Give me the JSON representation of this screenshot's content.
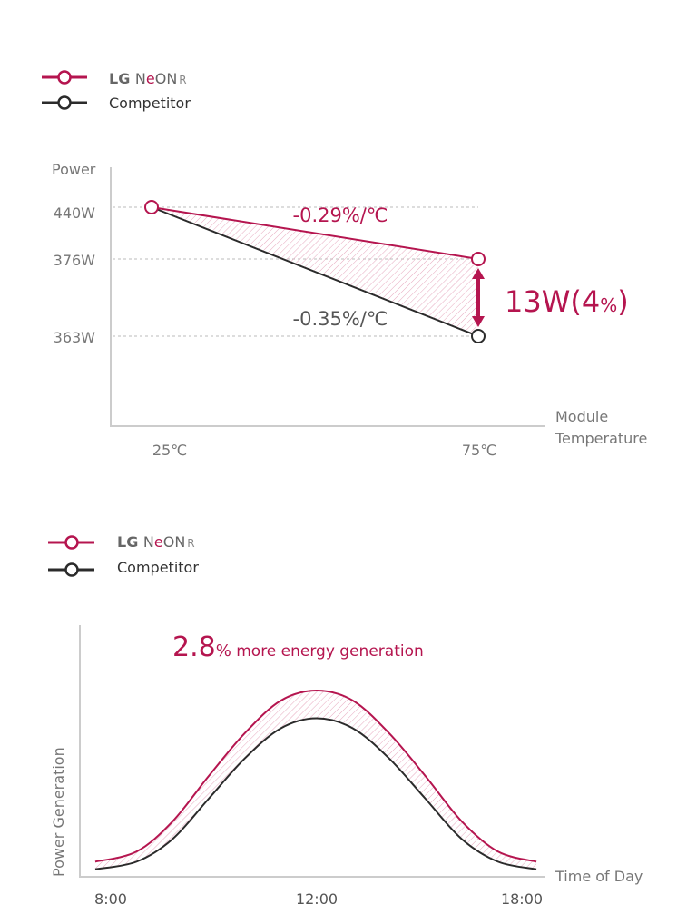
{
  "colors": {
    "lg": "#b5154f",
    "competitor": "#2b2b2b",
    "axis": "#cccccc",
    "label": "#666666",
    "hatch": "#e7a9bf"
  },
  "chart_data": [
    {
      "type": "line",
      "legend": {
        "placement": "top-left",
        "entries": [
          {
            "brand": "LG ",
            "name_a": "N",
            "name_e": "e",
            "name_b": "ON",
            "suffix": "R"
          },
          {
            "name": "Competitor"
          }
        ]
      },
      "ylabel": "Power",
      "xlabel": "Module Temperature",
      "xlabel_lines": [
        "Module",
        "Temperature"
      ],
      "x_ticks": [
        "25℃",
        "75℃"
      ],
      "y_ticks": [
        "440W",
        "376W",
        "363W"
      ],
      "x": [
        25,
        75
      ],
      "series": [
        {
          "name": "LG NeON R",
          "values": [
            440,
            376
          ],
          "annotation": "-0.29%/℃"
        },
        {
          "name": "Competitor",
          "values": [
            440,
            363
          ],
          "annotation": "-0.35%/℃"
        }
      ],
      "difference_label_main": "13W(4",
      "difference_label_pct": "%",
      "difference_label_close": ")",
      "grid": false
    },
    {
      "type": "line",
      "legend": {
        "placement": "top-left",
        "entries": [
          {
            "brand": "LG ",
            "name_a": "N",
            "name_e": "e",
            "name_b": "ON",
            "suffix": "R"
          },
          {
            "name": "Competitor"
          }
        ]
      },
      "ylabel": "Power Generation",
      "xlabel": "Time of Day",
      "x_ticks": [
        "8:00",
        "12:00",
        "18:00"
      ],
      "annotation_value": "2.8",
      "annotation_pct": "%",
      "annotation_text": " more energy generation",
      "x_hours": [
        7.7,
        8.5,
        9.2,
        9.9,
        10.6,
        11.3,
        12,
        13.06,
        14.12,
        15.18,
        16.24,
        17.3,
        18.42
      ],
      "series": [
        {
          "name": "LG NeON R",
          "values": [
            6,
            10,
            22,
            40,
            57,
            70,
            74,
            70,
            57,
            40,
            22,
            10,
            6
          ]
        },
        {
          "name": "Competitor",
          "values": [
            3,
            6,
            15,
            31,
            47,
            59,
            63,
            59,
            47,
            31,
            15,
            6,
            3
          ]
        }
      ],
      "grid": false
    }
  ]
}
